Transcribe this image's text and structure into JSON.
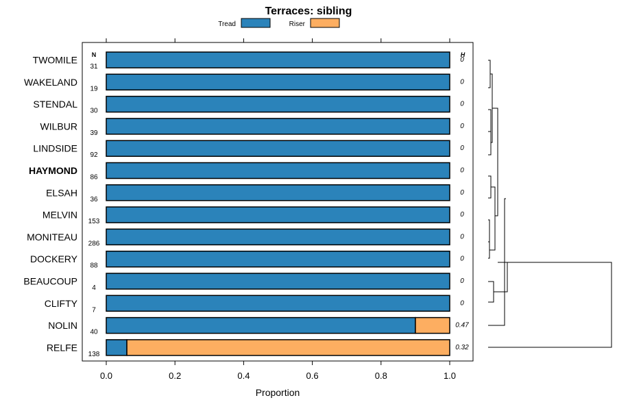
{
  "chart_data": {
    "type": "bar",
    "stacked": true,
    "orientation": "horizontal",
    "title": "Terraces: sibling",
    "xlabel": "Proportion",
    "ylabel": "",
    "xlim": [
      0,
      1
    ],
    "x_ticks": [
      "0.0",
      "0.2",
      "0.4",
      "0.6",
      "0.8",
      "1.0"
    ],
    "x_tick_values": [
      0,
      0.2,
      0.4,
      0.6,
      0.8,
      1.0
    ],
    "legend": [
      {
        "name": "Tread",
        "color": "#2b83ba"
      },
      {
        "name": "Riser",
        "color": "#fdae61"
      }
    ],
    "n_header": "N",
    "h_header": "H",
    "categories": [
      "TWOMILE",
      "WAKELAND",
      "STENDAL",
      "WILBUR",
      "LINDSIDE",
      "HAYMOND",
      "ELSAH",
      "MELVIN",
      "MONITEAU",
      "DOCKERY",
      "BEAUCOUP",
      "CLIFTY",
      "NOLIN",
      "RELFE"
    ],
    "highlighted_category": "HAYMOND",
    "n": [
      "31",
      "19",
      "30",
      "39",
      "92",
      "86",
      "36",
      "153",
      "286",
      "88",
      "4",
      "7",
      "40",
      "138"
    ],
    "h": [
      "0",
      "0",
      "0",
      "0",
      "0",
      "0",
      "0",
      "0",
      "0",
      "0",
      "0",
      "0",
      "0.47",
      "0.32"
    ],
    "series": [
      {
        "name": "Tread",
        "values": [
          1,
          1,
          1,
          1,
          1,
          1,
          1,
          1,
          1,
          1,
          1,
          1,
          0.9,
          0.06
        ]
      },
      {
        "name": "Riser",
        "values": [
          0,
          0,
          0,
          0,
          0,
          0,
          0,
          0,
          0,
          0,
          0,
          0,
          0.1,
          0.94
        ]
      }
    ],
    "dendrogram": "hierarchical clustering of the 14 series"
  }
}
